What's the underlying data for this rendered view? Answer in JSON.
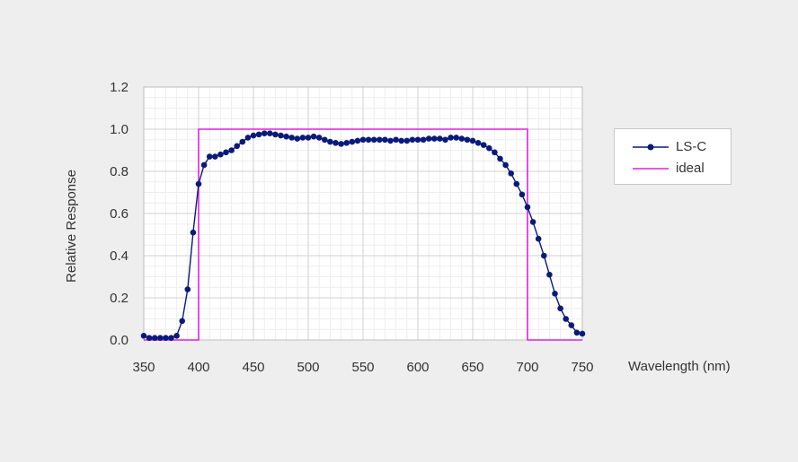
{
  "chart_data": {
    "type": "line",
    "title": "",
    "xlabel": "Wavelength (nm)",
    "ylabel": "Relative Response",
    "xlim": [
      350,
      750
    ],
    "ylim": [
      0,
      1.2
    ],
    "xticks": [
      "350",
      "400",
      "450",
      "500",
      "550",
      "600",
      "650",
      "700",
      "750"
    ],
    "yticks": [
      "0.0",
      "0.2",
      "0.4",
      "0.6",
      "0.8",
      "1.0",
      "1.2"
    ],
    "grid": true,
    "legend_position": "right",
    "series": [
      {
        "name": "LS-C",
        "color": "#0a1a7a",
        "marker": "circle",
        "x": [
          350,
          355,
          360,
          365,
          370,
          375,
          380,
          385,
          390,
          395,
          400,
          405,
          410,
          415,
          420,
          425,
          430,
          435,
          440,
          445,
          450,
          455,
          460,
          465,
          470,
          475,
          480,
          485,
          490,
          495,
          500,
          505,
          510,
          515,
          520,
          525,
          530,
          535,
          540,
          545,
          550,
          555,
          560,
          565,
          570,
          575,
          580,
          585,
          590,
          595,
          600,
          605,
          610,
          615,
          620,
          625,
          630,
          635,
          640,
          645,
          650,
          655,
          660,
          665,
          670,
          675,
          680,
          685,
          690,
          695,
          700,
          705,
          710,
          715,
          720,
          725,
          730,
          735,
          740,
          745,
          750
        ],
        "y": [
          0.02,
          0.01,
          0.01,
          0.01,
          0.01,
          0.01,
          0.02,
          0.09,
          0.24,
          0.51,
          0.74,
          0.83,
          0.87,
          0.87,
          0.88,
          0.89,
          0.9,
          0.92,
          0.94,
          0.96,
          0.97,
          0.975,
          0.98,
          0.98,
          0.975,
          0.97,
          0.965,
          0.96,
          0.955,
          0.96,
          0.96,
          0.965,
          0.96,
          0.95,
          0.94,
          0.935,
          0.93,
          0.935,
          0.94,
          0.945,
          0.95,
          0.95,
          0.95,
          0.95,
          0.95,
          0.945,
          0.95,
          0.945,
          0.945,
          0.95,
          0.95,
          0.95,
          0.955,
          0.955,
          0.955,
          0.95,
          0.96,
          0.96,
          0.955,
          0.95,
          0.945,
          0.935,
          0.925,
          0.91,
          0.89,
          0.86,
          0.83,
          0.79,
          0.74,
          0.69,
          0.63,
          0.56,
          0.48,
          0.4,
          0.31,
          0.22,
          0.15,
          0.1,
          0.07,
          0.035,
          0.03
        ]
      },
      {
        "name": "ideal",
        "color": "#e020e0",
        "marker": "none",
        "x": [
          350,
          400,
          400,
          700,
          700,
          750
        ],
        "y": [
          0,
          0,
          1,
          1,
          0,
          0
        ]
      }
    ]
  }
}
